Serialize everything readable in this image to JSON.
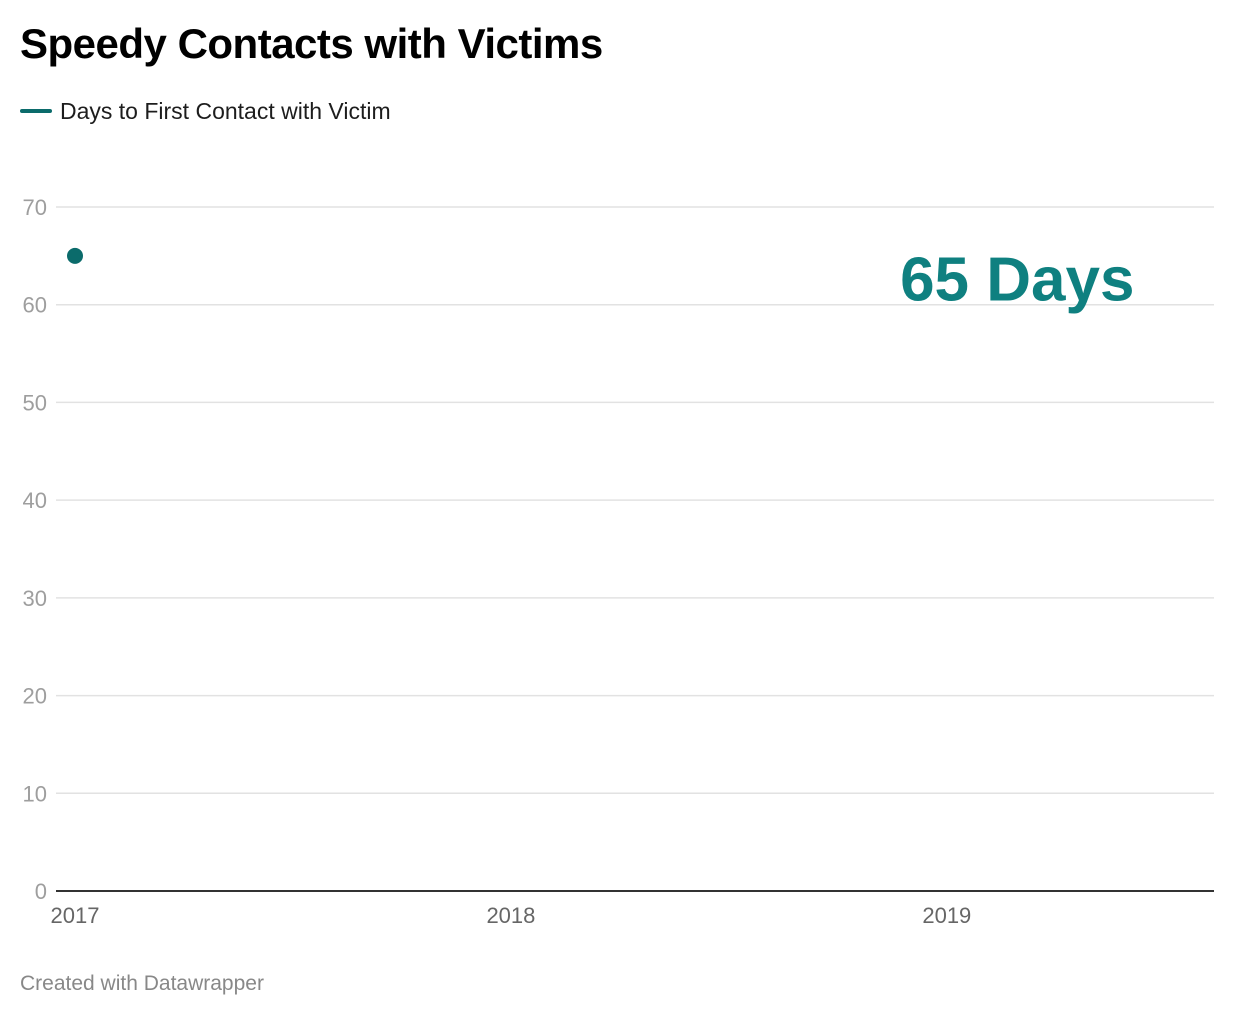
{
  "title": "Speedy Contacts with Victims",
  "footer": "Created with Datawrapper",
  "colors": {
    "series": "#0b6b6b",
    "annotation": "#0f8080",
    "grid": "#e2e2e2",
    "baseline": "#333333",
    "tick_label": "#9e9e9e",
    "x_tick_label": "#666666"
  },
  "chart_data": {
    "type": "line",
    "title": "Speedy Contacts with Victims",
    "xlabel": "",
    "ylabel": "",
    "x": [
      "2017-01-01"
    ],
    "xlim": [
      "2017-01-01",
      "2019-07-01"
    ],
    "ylim": [
      0,
      70
    ],
    "x_ticks": [
      "2017",
      "2018",
      "2019"
    ],
    "y_ticks": [
      0,
      10,
      20,
      30,
      40,
      50,
      60,
      70
    ],
    "grid": true,
    "legend": "top-left",
    "series": [
      {
        "name": "Days to First Contact with Victim",
        "values": [
          65
        ],
        "color": "#0b6b6b"
      }
    ],
    "annotations": [
      {
        "text": "65 Days",
        "x": "2019-03-01",
        "y": 62.5
      }
    ]
  }
}
